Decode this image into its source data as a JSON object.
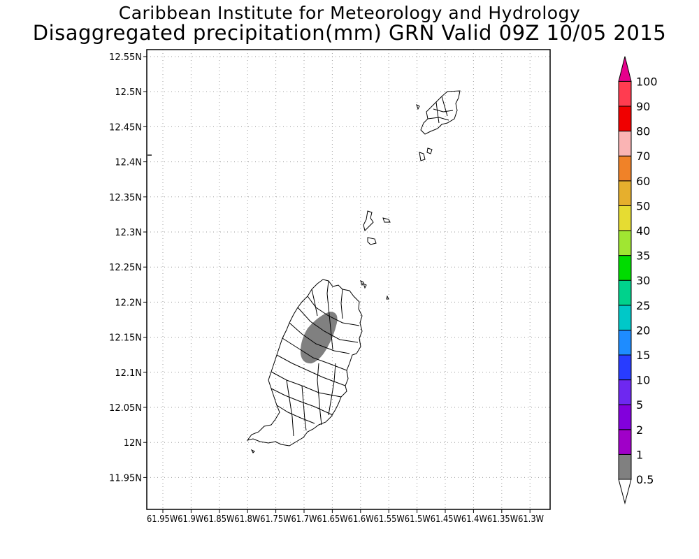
{
  "header": {
    "line1": "Caribbean Institute for Meteorology and Hydrology",
    "line2": "Disaggregated precipitation(mm) GRN Valid 09Z 10/05 2015"
  },
  "map": {
    "lat_ticks": [
      "12.55N",
      "12.5N",
      "12.45N",
      "12.4N",
      "12.35N",
      "12.3N",
      "12.25N",
      "12.2N",
      "12.15N",
      "12.1N",
      "12.05N",
      "12N",
      "11.95N"
    ],
    "lon_ticks": [
      "61.95W",
      "61.9W",
      "61.85W",
      "61.8W",
      "61.75W",
      "61.7W",
      "61.65W",
      "61.6W",
      "61.55W",
      "61.5W",
      "61.45W",
      "61.4W",
      "61.35W",
      "61.3W"
    ],
    "grid": "dotted",
    "precip_area": {
      "value_range_mm": "0.5-1",
      "color": "#808080",
      "location": "central Grenada"
    }
  },
  "colorbar": {
    "labels": [
      "0.5",
      "1",
      "2",
      "5",
      "10",
      "15",
      "20",
      "25",
      "30",
      "35",
      "40",
      "50",
      "60",
      "70",
      "80",
      "90",
      "100"
    ],
    "colors": [
      "#808080",
      "#a000c8",
      "#8200dc",
      "#6e28f0",
      "#283cff",
      "#1e8cff",
      "#00c8c8",
      "#00d28c",
      "#00dc00",
      "#a0e632",
      "#e6dc32",
      "#e6af2d",
      "#f08228",
      "#fab4b4",
      "#f00000",
      "#ff3c50",
      "#e6008c"
    ]
  }
}
